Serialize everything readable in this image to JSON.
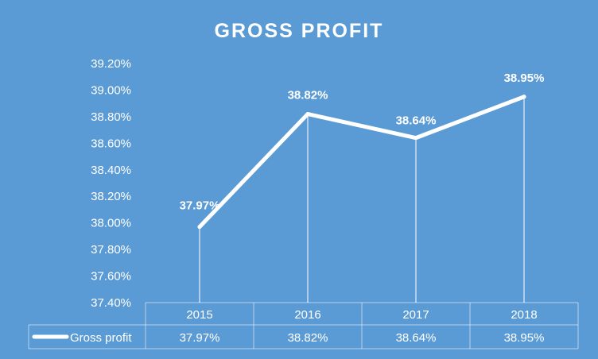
{
  "chart_data": {
    "type": "line",
    "title": "GROSS PROFIT",
    "xlabel": "",
    "ylabel": "",
    "categories": [
      "2015",
      "2016",
      "2017",
      "2018"
    ],
    "series": [
      {
        "name": "Gross profit",
        "values": [
          37.97,
          38.82,
          38.64,
          38.95
        ],
        "labels": [
          "37.97%",
          "38.82%",
          "38.64%",
          "38.95%"
        ]
      }
    ],
    "ylim": [
      37.4,
      39.2
    ],
    "ytick_labels": [
      "37.40%",
      "37.60%",
      "37.80%",
      "38.00%",
      "38.20%",
      "38.40%",
      "38.60%",
      "38.80%",
      "39.00%",
      "39.20%"
    ],
    "data_table": true,
    "drop_lines": true,
    "grid": false,
    "legend": "data-table-left"
  },
  "colors": {
    "background": "#5b9bd5",
    "line": "#ffffff",
    "text": "#ffffff"
  }
}
